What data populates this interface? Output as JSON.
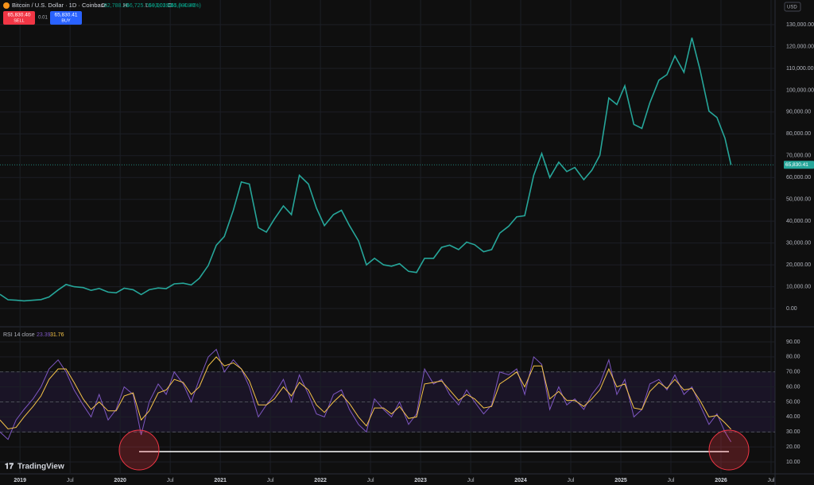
{
  "ui": {
    "symbol": "Bitcoin / U.S. Dollar · 1D · Coinbase",
    "ohlc": [
      {
        "key": "O",
        "value": "62,788.28"
      },
      {
        "key": "H",
        "value": "66,725.76"
      },
      {
        "key": "L",
        "value": "60,001.00"
      },
      {
        "key": "C",
        "value": "65,830.41"
      }
    ],
    "change": "+3,039.41 (+4.84%)",
    "sell_price": "65,830.40",
    "sell": "SELL",
    "spread": "0.01",
    "buy_price": "65,830.41",
    "buy": "BUY",
    "currency": "USD",
    "brand": "TradingView"
  },
  "chart_data": [
    {
      "type": "line",
      "xlim": [
        2018.8,
        2026.54
      ],
      "ylim": [
        -8000,
        141300
      ],
      "yticks": [
        {
          "value": 0,
          "label": "0.00"
        },
        {
          "value": 10000,
          "label": "10,000.00"
        },
        {
          "value": 20000,
          "label": "20,000.00"
        },
        {
          "value": 30000,
          "label": "30,000.00"
        },
        {
          "value": 40000,
          "label": "40,000.00"
        },
        {
          "value": 50000,
          "label": "50,000.00"
        },
        {
          "value": 60000,
          "label": "60,000.00"
        },
        {
          "value": 70000,
          "label": "70,000.00"
        },
        {
          "value": 80000,
          "label": "80,000.00"
        },
        {
          "value": 90000,
          "label": "90,000.00"
        },
        {
          "value": 100000,
          "label": "100,000.00"
        },
        {
          "value": 110000,
          "label": "110,000.00"
        },
        {
          "value": 120000,
          "label": "120,000.00"
        },
        {
          "value": 130000,
          "label": "130,000.00"
        }
      ],
      "last_price": {
        "value": 65830.41,
        "label": "65,830.41"
      },
      "x": [
        2018.8,
        2018.88,
        2018.96,
        2019.04,
        2019.13,
        2019.21,
        2019.29,
        2019.38,
        2019.46,
        2019.54,
        2019.63,
        2019.71,
        2019.79,
        2019.88,
        2019.96,
        2020.04,
        2020.13,
        2020.21,
        2020.29,
        2020.38,
        2020.46,
        2020.54,
        2020.63,
        2020.71,
        2020.79,
        2020.88,
        2020.96,
        2021.04,
        2021.13,
        2021.21,
        2021.29,
        2021.38,
        2021.46,
        2021.54,
        2021.63,
        2021.71,
        2021.79,
        2021.88,
        2021.96,
        2022.04,
        2022.13,
        2022.21,
        2022.29,
        2022.38,
        2022.46,
        2022.54,
        2022.63,
        2022.71,
        2022.79,
        2022.88,
        2022.96,
        2023.04,
        2023.13,
        2023.21,
        2023.29,
        2023.38,
        2023.46,
        2023.54,
        2023.63,
        2023.71,
        2023.79,
        2023.88,
        2023.96,
        2024.04,
        2024.13,
        2024.21,
        2024.29,
        2024.38,
        2024.46,
        2024.54,
        2024.63,
        2024.71,
        2024.79,
        2024.88,
        2024.96,
        2025.04,
        2025.13,
        2025.21,
        2025.29,
        2025.38,
        2025.46,
        2025.54,
        2025.63,
        2025.71,
        2025.79,
        2025.88,
        2025.96,
        2026.04,
        2026.1
      ],
      "series": [
        {
          "color": "#26a69a",
          "values": [
            6500,
            4000,
            3800,
            3500,
            3800,
            4100,
            5300,
            8500,
            11000,
            10000,
            9600,
            8300,
            9200,
            7500,
            7200,
            9300,
            8600,
            6400,
            8600,
            9400,
            9100,
            11300,
            11600,
            10800,
            13800,
            19700,
            29000,
            33000,
            45000,
            58000,
            57000,
            37000,
            35000,
            41000,
            47000,
            43000,
            61000,
            57000,
            46000,
            38000,
            43000,
            45000,
            38000,
            31000,
            20000,
            23000,
            20000,
            19400,
            20500,
            17000,
            16500,
            23000,
            23000,
            28000,
            29000,
            27000,
            30400,
            29200,
            26000,
            27000,
            34500,
            37700,
            42000,
            42500,
            61000,
            71000,
            60000,
            67000,
            62700,
            64600,
            59000,
            63300,
            70200,
            96400,
            93400,
            102000,
            84300,
            82500,
            94200,
            104600,
            107100,
            115700,
            108200,
            124000,
            109500,
            90400,
            87500,
            78000,
            65830.41
          ]
        }
      ]
    },
    {
      "type": "line",
      "title": "RSI 14 close",
      "xlim": [
        2018.8,
        2026.54
      ],
      "ylim": [
        2.6,
        99
      ],
      "yticks": [
        {
          "value": 10,
          "label": "10.00"
        },
        {
          "value": 20,
          "label": "20.00"
        },
        {
          "value": 30,
          "label": "30.00"
        },
        {
          "value": 40,
          "label": "40.00"
        },
        {
          "value": 50,
          "label": "50.00"
        },
        {
          "value": 60,
          "label": "60.00"
        },
        {
          "value": 70,
          "label": "70.00"
        },
        {
          "value": 80,
          "label": "80.00"
        },
        {
          "value": 90,
          "label": "90.00"
        }
      ],
      "bands": [
        30,
        50,
        70
      ],
      "xticks": [
        2019,
        {
          "value": 2019.5,
          "label": "Jul"
        },
        2020,
        {
          "value": 2020.5,
          "label": "Jul"
        },
        2021,
        {
          "value": 2021.5,
          "label": "Jul"
        },
        2022,
        {
          "value": 2022.5,
          "label": "Jul"
        },
        2023,
        {
          "value": 2023.5,
          "label": "Jul"
        },
        2024,
        {
          "value": 2024.5,
          "label": "Jul"
        },
        2025,
        {
          "value": 2025.5,
          "label": "Jul"
        },
        2026,
        {
          "value": 2026.5,
          "label": "Jul"
        }
      ],
      "x": [
        2018.8,
        2018.88,
        2018.96,
        2019.04,
        2019.13,
        2019.21,
        2019.29,
        2019.38,
        2019.46,
        2019.54,
        2019.63,
        2019.71,
        2019.79,
        2019.88,
        2019.96,
        2020.04,
        2020.13,
        2020.21,
        2020.29,
        2020.38,
        2020.46,
        2020.54,
        2020.63,
        2020.71,
        2020.79,
        2020.88,
        2020.96,
        2021.04,
        2021.13,
        2021.21,
        2021.29,
        2021.38,
        2021.46,
        2021.54,
        2021.63,
        2021.71,
        2021.79,
        2021.88,
        2021.96,
        2022.04,
        2022.13,
        2022.21,
        2022.29,
        2022.38,
        2022.46,
        2022.54,
        2022.63,
        2022.71,
        2022.79,
        2022.88,
        2022.96,
        2023.04,
        2023.13,
        2023.21,
        2023.29,
        2023.38,
        2023.46,
        2023.54,
        2023.63,
        2023.71,
        2023.79,
        2023.88,
        2023.96,
        2024.04,
        2024.13,
        2024.21,
        2024.29,
        2024.38,
        2024.46,
        2024.54,
        2024.63,
        2024.71,
        2024.79,
        2024.88,
        2024.96,
        2025.04,
        2025.13,
        2025.21,
        2025.29,
        2025.38,
        2025.46,
        2025.54,
        2025.63,
        2025.71,
        2025.79,
        2025.88,
        2025.96,
        2026.04,
        2026.1
      ],
      "series": [
        {
          "color": "#7e57c2",
          "values": [
            30,
            25,
            38,
            45,
            52,
            60,
            72,
            78,
            70,
            58,
            48,
            40,
            55,
            38,
            45,
            60,
            55,
            28,
            50,
            62,
            55,
            70,
            62,
            50,
            65,
            80,
            85,
            70,
            78,
            72,
            60,
            40,
            48,
            55,
            65,
            50,
            68,
            55,
            42,
            40,
            55,
            58,
            45,
            35,
            30,
            52,
            45,
            40,
            50,
            35,
            42,
            72,
            62,
            65,
            55,
            48,
            58,
            50,
            42,
            48,
            70,
            68,
            72,
            55,
            80,
            75,
            45,
            60,
            48,
            52,
            45,
            55,
            62,
            78,
            55,
            65,
            40,
            45,
            62,
            65,
            58,
            68,
            55,
            60,
            48,
            35,
            42,
            30,
            23.39
          ],
          "value_labels": {
            "88": "23.39"
          }
        },
        {
          "color": "#f7c548",
          "values": [
            38,
            32,
            33,
            40,
            47,
            54,
            65,
            72,
            72,
            63,
            52,
            45,
            50,
            44,
            44,
            54,
            56,
            38,
            44,
            56,
            58,
            65,
            63,
            55,
            60,
            74,
            80,
            74,
            76,
            72,
            64,
            48,
            48,
            52,
            60,
            54,
            63,
            58,
            48,
            43,
            50,
            55,
            49,
            40,
            34,
            46,
            46,
            42,
            47,
            39,
            40,
            62,
            63,
            64,
            58,
            51,
            55,
            52,
            46,
            47,
            62,
            66,
            70,
            60,
            74,
            74,
            52,
            57,
            51,
            51,
            47,
            52,
            58,
            72,
            60,
            62,
            46,
            45,
            57,
            63,
            59,
            65,
            58,
            59,
            51,
            40,
            41,
            36,
            31.76
          ],
          "value_labels": {
            "88": "31.76"
          }
        }
      ]
    }
  ]
}
